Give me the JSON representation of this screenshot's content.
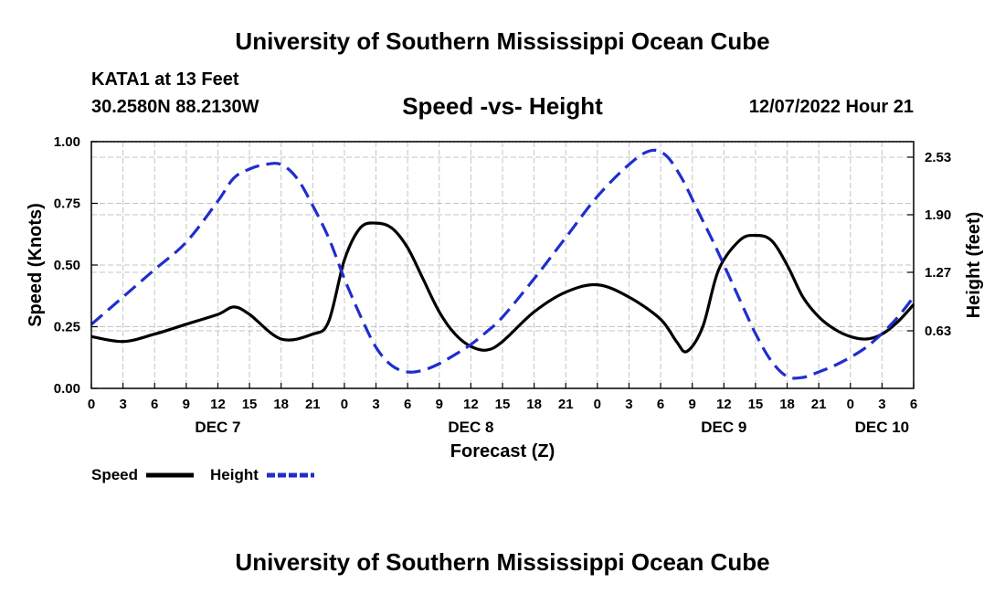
{
  "header": {
    "title": "University of Southern Mississippi Ocean Cube",
    "station": "KATA1 at 13 Feet",
    "coords": "30.2580N  88.2130W",
    "subtitle": "Speed -vs- Height",
    "timestamp": "12/07/2022 Hour 21"
  },
  "footer": {
    "title": "University of Southern Mississippi Ocean Cube"
  },
  "chart_data": {
    "type": "line",
    "title": "Speed -vs- Height",
    "xlabel": "Forecast (Z)",
    "ylabel": "Speed (Knots)",
    "y2label": "Height (feet)",
    "x_hours_range": [
      0,
      78
    ],
    "x_ticks": [
      {
        "h": 0,
        "label": "0"
      },
      {
        "h": 3,
        "label": "3"
      },
      {
        "h": 6,
        "label": "6"
      },
      {
        "h": 9,
        "label": "9"
      },
      {
        "h": 12,
        "label": "12"
      },
      {
        "h": 15,
        "label": "15"
      },
      {
        "h": 18,
        "label": "18"
      },
      {
        "h": 21,
        "label": "21"
      },
      {
        "h": 24,
        "label": "0"
      },
      {
        "h": 27,
        "label": "3"
      },
      {
        "h": 30,
        "label": "6"
      },
      {
        "h": 33,
        "label": "9"
      },
      {
        "h": 36,
        "label": "12"
      },
      {
        "h": 39,
        "label": "15"
      },
      {
        "h": 42,
        "label": "18"
      },
      {
        "h": 45,
        "label": "21"
      },
      {
        "h": 48,
        "label": "0"
      },
      {
        "h": 51,
        "label": "3"
      },
      {
        "h": 54,
        "label": "6"
      },
      {
        "h": 57,
        "label": "9"
      },
      {
        "h": 60,
        "label": "12"
      },
      {
        "h": 63,
        "label": "15"
      },
      {
        "h": 66,
        "label": "18"
      },
      {
        "h": 69,
        "label": "21"
      },
      {
        "h": 72,
        "label": "0"
      },
      {
        "h": 75,
        "label": "3"
      },
      {
        "h": 78,
        "label": "6"
      }
    ],
    "day_labels": [
      {
        "h": 12,
        "label": "DEC 7"
      },
      {
        "h": 36,
        "label": "DEC 8"
      },
      {
        "h": 60,
        "label": "DEC 9"
      },
      {
        "h": 75,
        "label": "DEC 10"
      }
    ],
    "y_left": {
      "range": [
        0,
        1.0
      ],
      "ticks": [
        0.0,
        0.25,
        0.5,
        0.75,
        1.0
      ],
      "labels": [
        "0.00",
        "0.25",
        "0.50",
        "0.75",
        "1.00"
      ]
    },
    "y_right": {
      "range": [
        0,
        2.7
      ],
      "ticks": [
        0.63,
        1.27,
        1.9,
        2.53
      ],
      "labels": [
        "0.63",
        "1.27",
        "1.90",
        "2.53"
      ]
    },
    "grid": true,
    "legend": [
      "Speed",
      "Height"
    ],
    "series": [
      {
        "name": "Speed",
        "axis": "left",
        "color": "#000000",
        "style": "solid",
        "x": [
          0,
          3,
          6,
          9,
          12,
          13.5,
          15,
          18,
          21,
          22.5,
          24,
          25.5,
          27,
          28.5,
          30,
          31.5,
          33,
          34.5,
          36,
          37.5,
          39,
          42,
          45,
          48,
          51,
          54,
          55.5,
          56.5,
          58,
          59.5,
          61.5,
          63,
          64.5,
          66,
          67.5,
          69,
          70.5,
          72,
          73.5,
          75,
          76.5,
          78
        ],
        "values": [
          0.21,
          0.19,
          0.22,
          0.26,
          0.3,
          0.33,
          0.3,
          0.2,
          0.22,
          0.27,
          0.52,
          0.65,
          0.67,
          0.65,
          0.57,
          0.44,
          0.31,
          0.22,
          0.17,
          0.155,
          0.19,
          0.31,
          0.39,
          0.42,
          0.37,
          0.28,
          0.19,
          0.15,
          0.25,
          0.48,
          0.6,
          0.62,
          0.6,
          0.5,
          0.37,
          0.29,
          0.24,
          0.21,
          0.2,
          0.22,
          0.27,
          0.34
        ]
      },
      {
        "name": "Height",
        "axis": "right",
        "color": "#1f2ecb",
        "style": "dashed",
        "x": [
          0,
          3,
          6,
          9,
          12,
          13.5,
          15,
          16.5,
          18,
          19.5,
          21,
          22.5,
          24,
          25.5,
          27,
          28.5,
          30,
          31.5,
          33,
          34.5,
          36,
          37.5,
          39,
          42,
          45,
          48,
          51,
          53,
          54.5,
          56,
          57.5,
          59,
          61,
          63,
          64.5,
          66,
          67.5,
          69,
          70.5,
          72,
          73.5,
          75,
          76.5,
          78
        ],
        "values": [
          0.7,
          1.0,
          1.3,
          1.6,
          2.05,
          2.3,
          2.4,
          2.45,
          2.45,
          2.3,
          2.0,
          1.65,
          1.2,
          0.8,
          0.45,
          0.25,
          0.18,
          0.2,
          0.27,
          0.37,
          0.48,
          0.62,
          0.78,
          1.2,
          1.65,
          2.1,
          2.45,
          2.6,
          2.55,
          2.3,
          1.95,
          1.6,
          1.1,
          0.6,
          0.3,
          0.13,
          0.12,
          0.18,
          0.25,
          0.34,
          0.45,
          0.6,
          0.78,
          1.0
        ]
      }
    ]
  }
}
